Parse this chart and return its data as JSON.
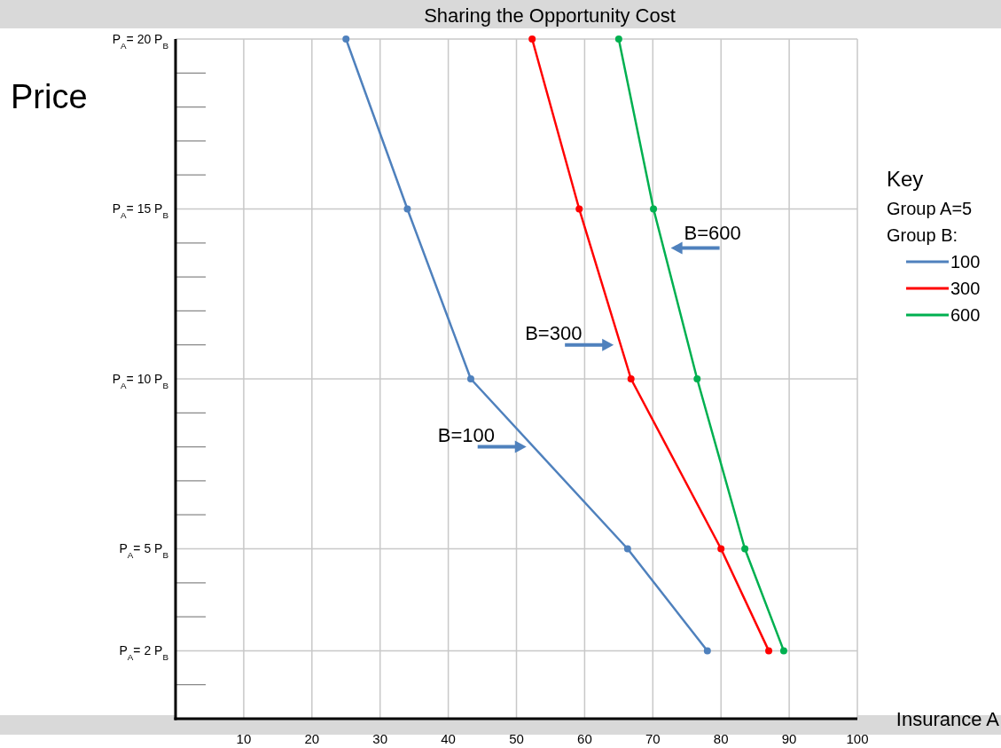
{
  "chart_data": {
    "type": "line",
    "title": "Sharing the Opportunity Cost",
    "xlabel": "Insurance A",
    "ylabel": "Price",
    "legend_title": "Key",
    "annotations": [
      "Group A=5",
      "Group B:",
      {
        "text": "B=600",
        "x": 71.6,
        "y": 13.85
      },
      {
        "text": "B=300",
        "x": 65.3,
        "y": 11
      },
      {
        "text": "B=100",
        "x": 52.5,
        "y": 8
      }
    ],
    "series": [
      {
        "name": "100",
        "color": "#4f81bd",
        "x": [
          25,
          34,
          43.3,
          66.3,
          78
        ],
        "values": [
          20,
          15,
          10,
          5,
          2
        ]
      },
      {
        "name": "300",
        "color": "#ff0000",
        "x": [
          52.3,
          59.2,
          66.8,
          80,
          87
        ],
        "values": [
          20,
          15,
          10,
          5,
          2
        ]
      },
      {
        "name": "600",
        "color": "#00b050",
        "x": [
          65,
          70.1,
          76.5,
          83.5,
          89.2
        ],
        "values": [
          20,
          15,
          10,
          5,
          2
        ]
      }
    ],
    "xlim": [
      0,
      100
    ],
    "xticks": [
      10,
      20,
      30,
      40,
      50,
      60,
      70,
      80,
      90,
      100
    ],
    "ylim": [
      0,
      20
    ],
    "yticks": [
      {
        "value": 2,
        "label": "P$_{A}$= 2 P$_{B}$"
      },
      {
        "value": 5,
        "label": "P$_{A}$= 5 P$_{B}$"
      },
      {
        "value": 10,
        "label": "P$_{A}$= 10 P$_{B}$"
      },
      {
        "value": 15,
        "label": "P$_{A}$= 15 P$_{B}$"
      },
      {
        "value": 20,
        "label": "P$_{A}$= 20 P$_{B}$"
      }
    ],
    "grid": true,
    "legend": "right",
    "marker": "circle",
    "line_style": "solid"
  }
}
